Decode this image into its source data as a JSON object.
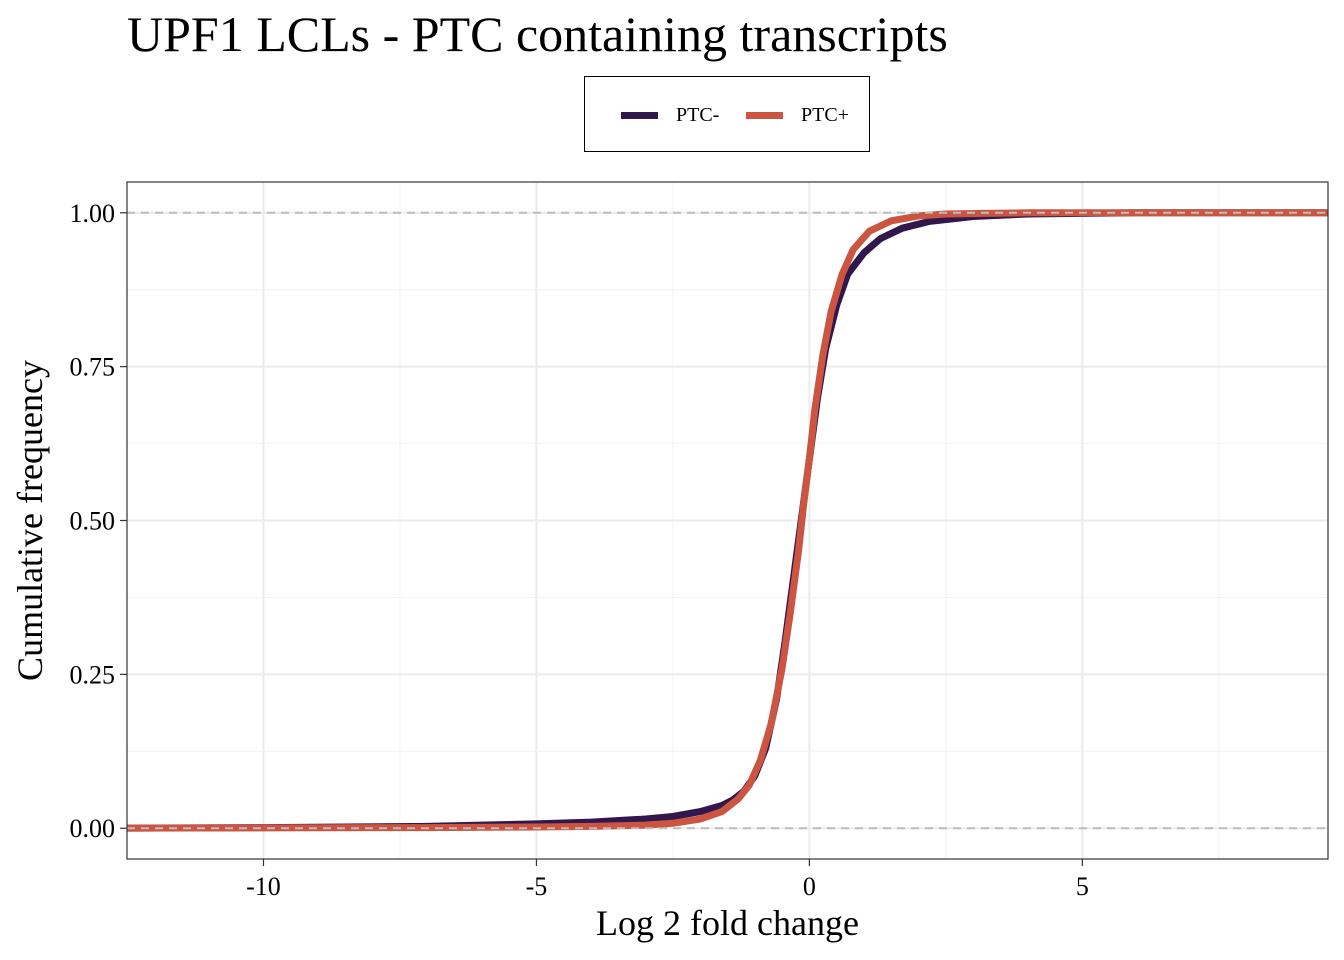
{
  "chart_data": {
    "type": "line",
    "title": "UPF1 LCLs - PTC containing transcripts",
    "xlabel": "Log 2 fold change",
    "ylabel": "Cumulative frequency",
    "xlim": [
      -12.5,
      9.5
    ],
    "ylim": [
      -0.05,
      1.05
    ],
    "x_ticks": [
      -10,
      -5,
      0,
      5
    ],
    "x_tick_labels": [
      "-10",
      "-5",
      "0",
      "5"
    ],
    "y_ticks": [
      0,
      0.25,
      0.5,
      0.75,
      1.0
    ],
    "y_tick_labels": [
      "0.00",
      "0.25",
      "0.50",
      "0.75",
      "1.00"
    ],
    "reference_lines": [
      0,
      1
    ],
    "grid": true,
    "legend_position": "top",
    "series": [
      {
        "name": "PTC-",
        "color": "#32174d",
        "points": [
          [
            -13,
            0
          ],
          [
            -10,
            0.001
          ],
          [
            -7,
            0.003
          ],
          [
            -5,
            0.007
          ],
          [
            -4,
            0.01
          ],
          [
            -3,
            0.015
          ],
          [
            -2.5,
            0.019
          ],
          [
            -2,
            0.027
          ],
          [
            -1.6,
            0.037
          ],
          [
            -1.4,
            0.046
          ],
          [
            -1.2,
            0.06
          ],
          [
            -1,
            0.085
          ],
          [
            -0.8,
            0.13
          ],
          [
            -0.6,
            0.21
          ],
          [
            -0.45,
            0.3
          ],
          [
            -0.3,
            0.4
          ],
          [
            -0.15,
            0.5
          ],
          [
            0,
            0.6
          ],
          [
            0.15,
            0.7
          ],
          [
            0.3,
            0.78
          ],
          [
            0.5,
            0.85
          ],
          [
            0.7,
            0.9
          ],
          [
            1,
            0.935
          ],
          [
            1.3,
            0.958
          ],
          [
            1.7,
            0.975
          ],
          [
            2.2,
            0.986
          ],
          [
            3,
            0.994
          ],
          [
            4,
            0.998
          ],
          [
            5,
            0.999
          ],
          [
            6,
            1
          ],
          [
            9.5,
            1
          ]
        ]
      },
      {
        "name": "PTC+",
        "color": "#cc5541",
        "points": [
          [
            -13,
            0
          ],
          [
            -7,
            0.001
          ],
          [
            -5,
            0.002
          ],
          [
            -4,
            0.003
          ],
          [
            -3,
            0.005
          ],
          [
            -2.5,
            0.008
          ],
          [
            -2,
            0.015
          ],
          [
            -1.6,
            0.027
          ],
          [
            -1.3,
            0.048
          ],
          [
            -1.1,
            0.07
          ],
          [
            -0.9,
            0.11
          ],
          [
            -0.7,
            0.17
          ],
          [
            -0.5,
            0.26
          ],
          [
            -0.35,
            0.35
          ],
          [
            -0.2,
            0.45
          ],
          [
            -0.1,
            0.53
          ],
          [
            0,
            0.6
          ],
          [
            0.1,
            0.68
          ],
          [
            0.25,
            0.77
          ],
          [
            0.4,
            0.84
          ],
          [
            0.6,
            0.9
          ],
          [
            0.8,
            0.94
          ],
          [
            1.1,
            0.97
          ],
          [
            1.5,
            0.987
          ],
          [
            2,
            0.995
          ],
          [
            2.5,
            0.998
          ],
          [
            3.2,
            0.999
          ],
          [
            4,
            1
          ],
          [
            9.5,
            1
          ]
        ]
      }
    ]
  }
}
